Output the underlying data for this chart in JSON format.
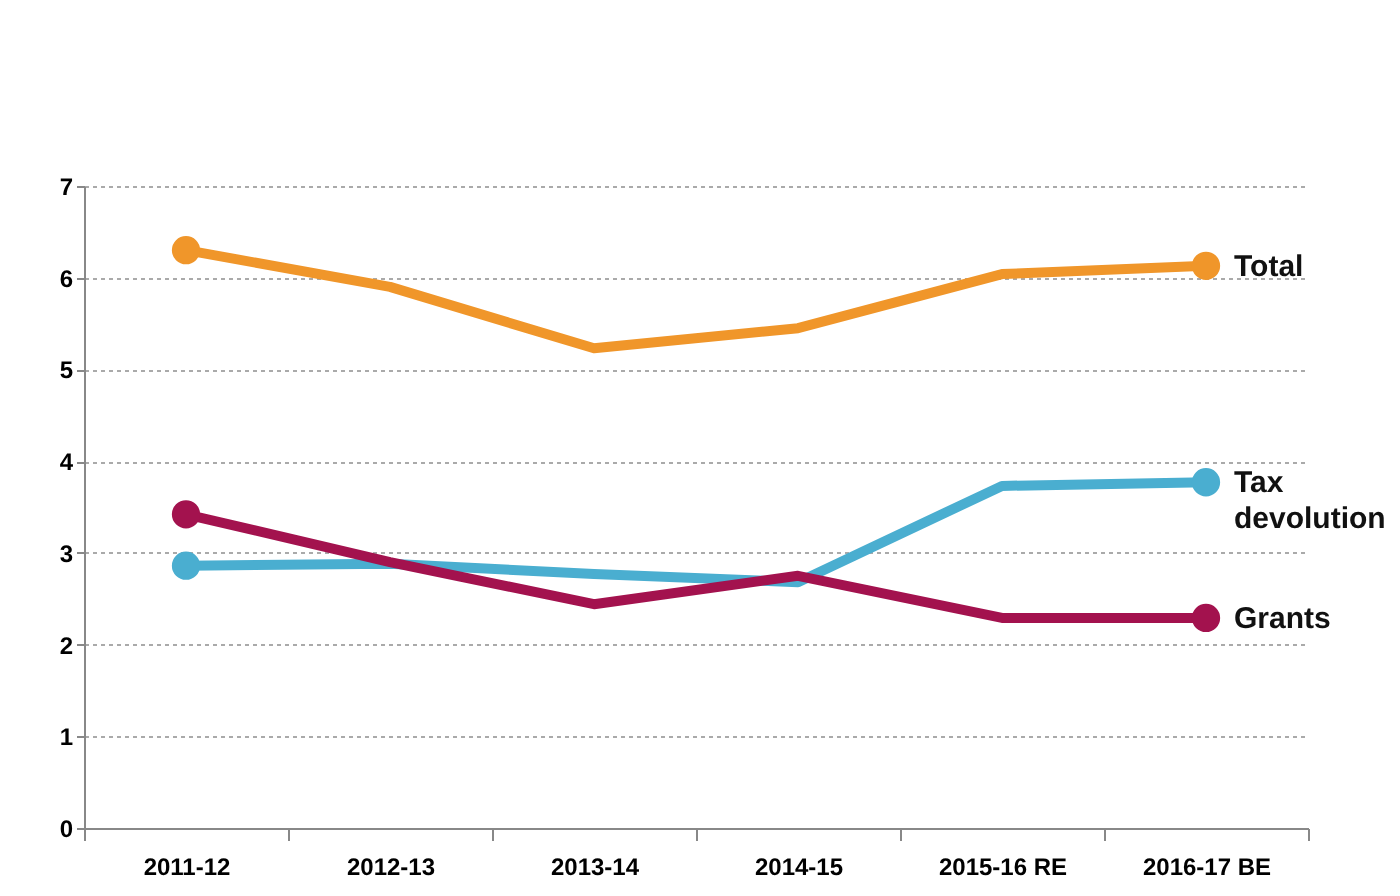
{
  "chart_data": {
    "type": "line",
    "categories": [
      "2011-12",
      "2012-13",
      "2013-14",
      "2014-15",
      "2015-16 RE",
      "2016-17 BE"
    ],
    "series": [
      {
        "name": "Total",
        "color": "#f0962a",
        "values": [
          6.3,
          5.9,
          5.23,
          5.45,
          6.04,
          6.13
        ]
      },
      {
        "name": "Tax devolution",
        "color": "#4aaed0",
        "values": [
          2.86,
          2.88,
          2.77,
          2.68,
          3.73,
          3.77
        ]
      },
      {
        "name": "Grants",
        "color": "#a3124e",
        "values": [
          3.42,
          2.9,
          2.44,
          2.75,
          2.29,
          2.29
        ]
      }
    ],
    "ylim": [
      0,
      7
    ],
    "yticks": [
      0,
      1,
      2,
      3,
      4,
      5,
      6,
      7
    ],
    "grid": "y",
    "legend": false,
    "line_style": "solid"
  }
}
